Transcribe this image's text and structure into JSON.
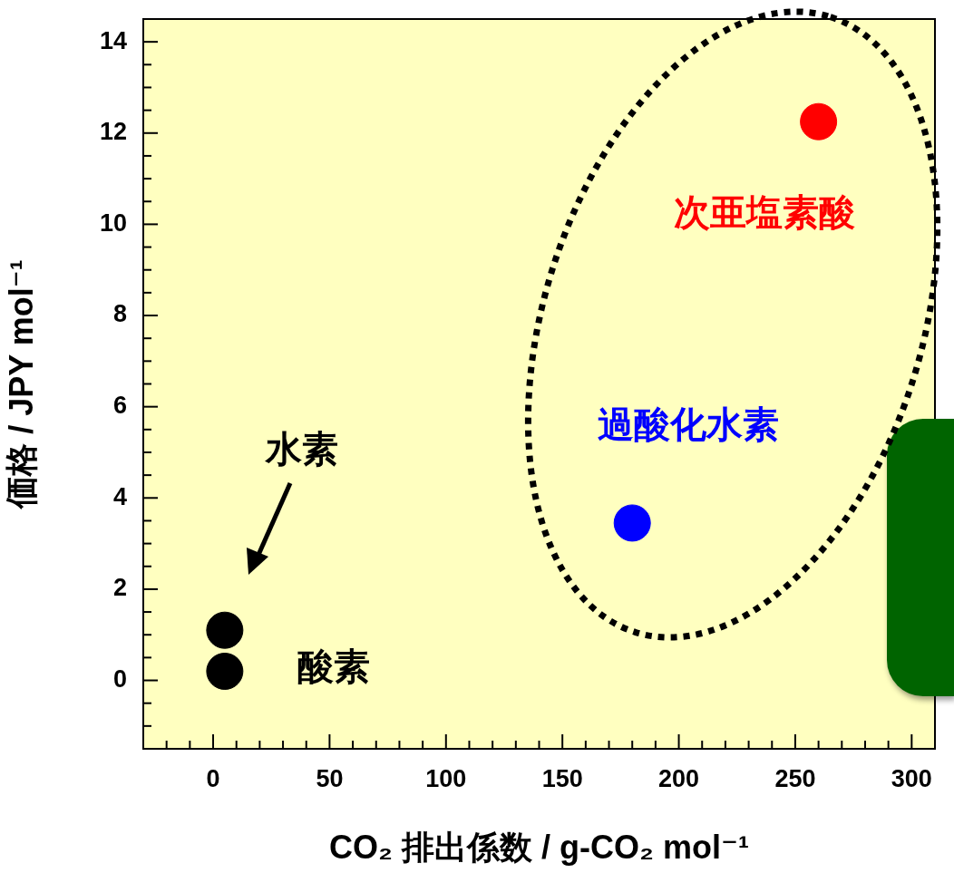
{
  "chart_data": {
    "type": "scatter",
    "xlabel": "CO₂ 排出係数 / g-CO₂ mol⁻¹",
    "ylabel": "価格 / JPY mol⁻¹",
    "series": [
      {
        "color": "#000000",
        "x": [
          5,
          5
        ],
        "values": [
          1.1,
          0.2
        ]
      },
      {
        "name": "過酸化水素",
        "color": "#0000ff",
        "x": [
          180
        ],
        "values": [
          3.45
        ]
      },
      {
        "name": "次亜塩素酸",
        "color": "#ff0000",
        "x": [
          260
        ],
        "values": [
          12.25
        ]
      }
    ],
    "annotations": [
      "水素",
      "酸素"
    ],
    "marker": "circle",
    "xlim": [
      -30,
      310
    ],
    "xticks": [
      {
        "value": -20,
        "label": null
      },
      {
        "value": -10,
        "label": null
      },
      0,
      {
        "value": 10,
        "label": null
      },
      {
        "value": 20,
        "label": null
      },
      {
        "value": 30,
        "label": null
      },
      {
        "value": 40,
        "label": null
      },
      50,
      {
        "value": 60,
        "label": null
      },
      {
        "value": 70,
        "label": null
      },
      {
        "value": 80,
        "label": null
      },
      {
        "value": 90,
        "label": null
      },
      100,
      {
        "value": 110,
        "label": null
      },
      {
        "value": 120,
        "label": null
      },
      {
        "value": 130,
        "label": null
      },
      {
        "value": 140,
        "label": null
      },
      150,
      {
        "value": 160,
        "label": null
      },
      {
        "value": 170,
        "label": null
      },
      {
        "value": 180,
        "label": null
      },
      {
        "value": 190,
        "label": null
      },
      200,
      {
        "value": 210,
        "label": null
      },
      {
        "value": 220,
        "label": null
      },
      {
        "value": 230,
        "label": null
      },
      {
        "value": 240,
        "label": null
      },
      250,
      {
        "value": 260,
        "label": null
      },
      {
        "value": 270,
        "label": null
      },
      {
        "value": 280,
        "label": null
      },
      {
        "value": 290,
        "label": null
      },
      300
    ],
    "ylim": [
      -1.5,
      14.5
    ],
    "yticks": [
      {
        "value": -1,
        "label": null
      },
      {
        "value": -0.5,
        "label": null
      },
      0,
      {
        "value": 0.5,
        "label": null
      },
      {
        "value": 1,
        "label": null
      },
      {
        "value": 1.5,
        "label": null
      },
      2,
      {
        "value": 2.5,
        "label": null
      },
      {
        "value": 3,
        "label": null
      },
      {
        "value": 3.5,
        "label": null
      },
      4,
      {
        "value": 4.5,
        "label": null
      },
      {
        "value": 5,
        "label": null
      },
      {
        "value": 5.5,
        "label": null
      },
      6,
      {
        "value": 6.5,
        "label": null
      },
      {
        "value": 7,
        "label": null
      },
      {
        "value": 7.5,
        "label": null
      },
      8,
      {
        "value": 8.5,
        "label": null
      },
      {
        "value": 9,
        "label": null
      },
      {
        "value": 9.5,
        "label": null
      },
      10,
      {
        "value": 10.5,
        "label": null
      },
      {
        "value": 11,
        "label": null
      },
      {
        "value": 11.5,
        "label": null
      },
      12,
      {
        "value": 12.5,
        "label": null
      },
      {
        "value": 13,
        "label": null
      },
      {
        "value": 13.5,
        "label": null
      },
      14
    ],
    "grid": false
  }
}
